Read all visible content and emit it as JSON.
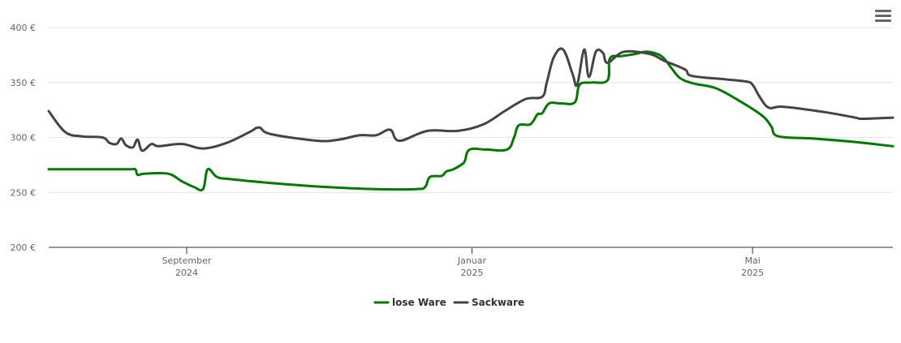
{
  "chart_data": {
    "type": "line",
    "title": "",
    "xlabel": "",
    "ylabel": "",
    "ylim": [
      200,
      400
    ],
    "yticks": [
      "400 €",
      "350 €",
      "300 €",
      "250 €",
      "200 €"
    ],
    "ytick_values": [
      400,
      350,
      300,
      250,
      200
    ],
    "xticks": [
      {
        "month": "September",
        "year": "2024",
        "date": "2024-09-01"
      },
      {
        "month": "Januar",
        "year": "2025",
        "date": "2025-01-01"
      },
      {
        "month": "Mai",
        "year": "2025",
        "date": "2025-05-01"
      }
    ],
    "xrange": [
      "2024-07-04",
      "2025-06-30"
    ],
    "grid": true,
    "legend_position": "bottom-center",
    "colors": {
      "lose_ware": "#007a00",
      "sackware": "#444444"
    },
    "series": [
      {
        "name": "lose Ware",
        "key": "lose_ware",
        "points": [
          [
            "2024-07-04",
            271
          ],
          [
            "2024-07-21",
            271
          ],
          [
            "2024-08-07",
            271
          ],
          [
            "2024-08-10",
            271
          ],
          [
            "2024-08-11",
            266
          ],
          [
            "2024-08-14",
            267
          ],
          [
            "2024-08-24",
            267
          ],
          [
            "2024-08-30",
            260
          ],
          [
            "2024-09-04",
            255
          ],
          [
            "2024-09-08",
            253
          ],
          [
            "2024-09-10",
            271
          ],
          [
            "2024-09-14",
            264
          ],
          [
            "2024-09-20",
            262
          ],
          [
            "2024-10-10",
            258
          ],
          [
            "2024-10-30",
            255
          ],
          [
            "2024-11-20",
            253
          ],
          [
            "2024-12-08",
            253
          ],
          [
            "2024-12-12",
            255
          ],
          [
            "2024-12-14",
            264
          ],
          [
            "2024-12-19",
            265
          ],
          [
            "2024-12-21",
            269
          ],
          [
            "2024-12-24",
            271
          ],
          [
            "2024-12-28",
            276
          ],
          [
            "2024-12-29",
            279
          ],
          [
            "2024-12-31",
            289
          ],
          [
            "2025-01-07",
            289
          ],
          [
            "2025-01-16",
            289
          ],
          [
            "2025-01-19",
            300
          ],
          [
            "2025-01-21",
            311
          ],
          [
            "2025-01-26",
            312
          ],
          [
            "2025-01-29",
            321
          ],
          [
            "2025-01-31",
            322
          ],
          [
            "2025-02-03",
            331
          ],
          [
            "2025-02-08",
            331
          ],
          [
            "2025-02-14",
            332
          ],
          [
            "2025-02-16",
            348
          ],
          [
            "2025-02-21",
            350
          ],
          [
            "2025-02-28",
            352
          ],
          [
            "2025-03-01",
            372
          ],
          [
            "2025-03-06",
            374
          ],
          [
            "2025-03-12",
            376
          ],
          [
            "2025-03-17",
            378
          ],
          [
            "2025-03-23",
            374
          ],
          [
            "2025-03-27",
            364
          ],
          [
            "2025-03-31",
            354
          ],
          [
            "2025-04-06",
            349
          ],
          [
            "2025-04-15",
            345
          ],
          [
            "2025-04-24",
            335
          ],
          [
            "2025-05-05",
            320
          ],
          [
            "2025-05-09",
            310
          ],
          [
            "2025-05-12",
            301
          ],
          [
            "2025-05-27",
            299
          ],
          [
            "2025-06-13",
            296
          ],
          [
            "2025-06-30",
            292
          ]
        ]
      },
      {
        "name": "Sackware",
        "key": "sackware",
        "points": [
          [
            "2024-07-04",
            324
          ],
          [
            "2024-07-11",
            305
          ],
          [
            "2024-07-18",
            301
          ],
          [
            "2024-07-27",
            300
          ],
          [
            "2024-07-30",
            295
          ],
          [
            "2024-08-02",
            294
          ],
          [
            "2024-08-04",
            299
          ],
          [
            "2024-08-06",
            293
          ],
          [
            "2024-08-09",
            291
          ],
          [
            "2024-08-11",
            298
          ],
          [
            "2024-08-13",
            288
          ],
          [
            "2024-08-17",
            294
          ],
          [
            "2024-08-20",
            292
          ],
          [
            "2024-08-30",
            294
          ],
          [
            "2024-09-08",
            290
          ],
          [
            "2024-09-18",
            295
          ],
          [
            "2024-09-28",
            305
          ],
          [
            "2024-10-02",
            309
          ],
          [
            "2024-10-07",
            303
          ],
          [
            "2024-10-27",
            297
          ],
          [
            "2024-11-05",
            298
          ],
          [
            "2024-11-14",
            302
          ],
          [
            "2024-11-21",
            302
          ],
          [
            "2024-11-27",
            307
          ],
          [
            "2024-12-01",
            297
          ],
          [
            "2024-12-13",
            306
          ],
          [
            "2024-12-26",
            306
          ],
          [
            "2025-01-06",
            312
          ],
          [
            "2025-01-15",
            324
          ],
          [
            "2025-01-24",
            335
          ],
          [
            "2025-01-31",
            337
          ],
          [
            "2025-02-02",
            350
          ],
          [
            "2025-02-05",
            373
          ],
          [
            "2025-02-09",
            380
          ],
          [
            "2025-02-13",
            358
          ],
          [
            "2025-02-15",
            348
          ],
          [
            "2025-02-18",
            380
          ],
          [
            "2025-02-20",
            355
          ],
          [
            "2025-02-23",
            378
          ],
          [
            "2025-02-26",
            377
          ],
          [
            "2025-02-28",
            368
          ],
          [
            "2025-03-07",
            378
          ],
          [
            "2025-03-18",
            376
          ],
          [
            "2025-03-24",
            370
          ],
          [
            "2025-04-02",
            362
          ],
          [
            "2025-04-05",
            356
          ],
          [
            "2025-04-19",
            353
          ],
          [
            "2025-04-28",
            351
          ],
          [
            "2025-05-01",
            348
          ],
          [
            "2025-05-04",
            337
          ],
          [
            "2025-05-08",
            327
          ],
          [
            "2025-05-14",
            328
          ],
          [
            "2025-06-01",
            323
          ],
          [
            "2025-06-14",
            318
          ],
          [
            "2025-06-17",
            317
          ],
          [
            "2025-06-30",
            318
          ]
        ]
      }
    ]
  }
}
